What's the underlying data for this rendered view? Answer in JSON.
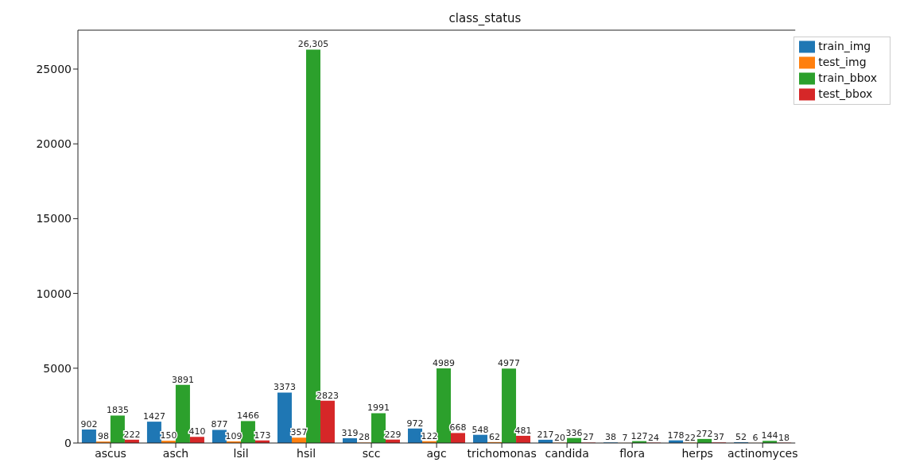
{
  "chart_data": {
    "type": "bar",
    "title": "class_status",
    "categories": [
      "ascus",
      "asch",
      "lsil",
      "hsil",
      "scc",
      "agc",
      "trichomonas",
      "candida",
      "flora",
      "herps",
      "actinomyces"
    ],
    "series": [
      {
        "name": "train_img",
        "color": "#1f77b4",
        "values": [
          902,
          1427,
          877,
          3373,
          319,
          972,
          548,
          217,
          38,
          178,
          52
        ],
        "value_labels": [
          "902",
          "1427",
          "877",
          "3373",
          "319",
          "972",
          "548",
          "217",
          "38",
          "178",
          "52"
        ]
      },
      {
        "name": "test_img",
        "color": "#ff7f0e",
        "values": [
          98,
          150,
          109,
          357,
          28,
          122,
          62,
          20,
          7,
          22,
          6
        ],
        "value_labels": [
          "98",
          "150",
          "109",
          "357",
          "28",
          "122",
          "62",
          "20",
          "7",
          "22",
          "6"
        ]
      },
      {
        "name": "train_bbox",
        "color": "#2ca02c",
        "values": [
          1835,
          3891,
          1466,
          26305,
          1991,
          4989,
          4977,
          336,
          127,
          272,
          144
        ],
        "value_labels": [
          "1835",
          "3891",
          "1466",
          "26,305",
          "1991",
          "4989",
          "4977",
          "336",
          "127",
          "272",
          "144"
        ]
      },
      {
        "name": "test_bbox",
        "color": "#d62728",
        "values": [
          222,
          410,
          173,
          2823,
          229,
          668,
          481,
          27,
          24,
          37,
          18
        ],
        "value_labels": [
          "222",
          "410",
          "173",
          "2823",
          "229",
          "668",
          "481",
          "27",
          "24",
          "37",
          "18"
        ]
      }
    ],
    "ylim": [
      0,
      27600
    ],
    "yticks": [
      0,
      5000,
      10000,
      15000,
      20000,
      25000
    ],
    "grid": false,
    "legend": "top right"
  }
}
